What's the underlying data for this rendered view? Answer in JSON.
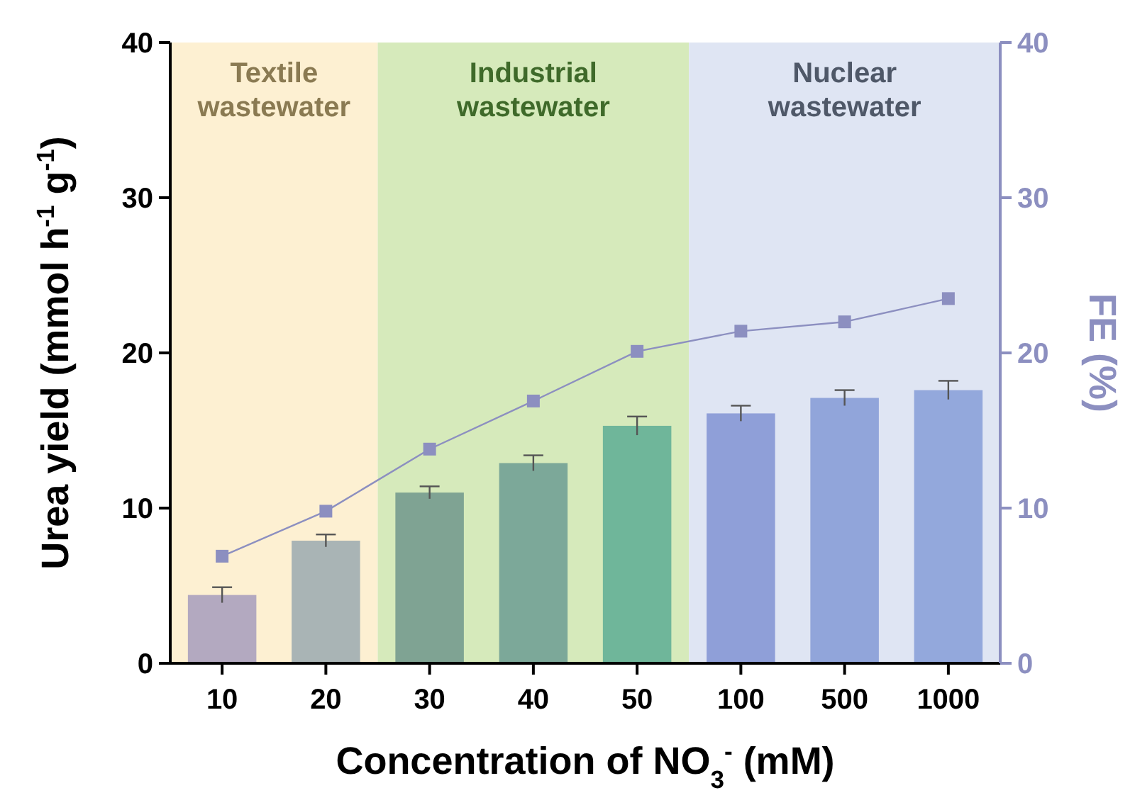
{
  "chart_data": {
    "type": "bar",
    "xlabel": "Concentration of NO$_{3}$$^{-}$ (mM)",
    "ylabel": "Urea yield (mmol h$^{-1}$ g$^{-1}$)",
    "y2label": "FE (%)",
    "categories": [
      "10",
      "20",
      "30",
      "40",
      "50",
      "100",
      "500",
      "1000"
    ],
    "series": [
      {
        "colors": [
          "#b3a9c0",
          "#a9b4b5",
          "#7fa393",
          "#7ca899",
          "#6fb69a",
          "#8f9fd8",
          "#91a5da",
          "#93a8dc"
        ],
        "values": [
          4.4,
          7.9,
          11.0,
          12.9,
          15.3,
          16.1,
          17.1,
          17.6
        ],
        "errors": [
          0.5,
          0.4,
          0.4,
          0.5,
          0.6,
          0.5,
          0.5,
          0.6
        ]
      },
      {
        "type": "line",
        "axis": "y2",
        "color": "#8c8fc0",
        "marker": "square",
        "line_style": "solid",
        "values": [
          6.9,
          9.8,
          13.8,
          16.9,
          20.1,
          21.4,
          22.0,
          23.5
        ]
      }
    ],
    "ylim": [
      0,
      40
    ],
    "yticks": [
      0,
      10,
      20,
      30,
      40
    ],
    "y2lim": [
      0,
      40
    ],
    "y2ticks": [
      0,
      10,
      20,
      30,
      40
    ],
    "bands": [
      {
        "axis": "x",
        "from": "10",
        "to": "20",
        "label": "Textile wastewater",
        "color": "#fdf0d2"
      },
      {
        "axis": "x",
        "from": "30",
        "to": "50",
        "label": "Industrial wastewater",
        "color": "#d6eabb"
      },
      {
        "axis": "x",
        "from": "100",
        "to": "1000",
        "label": "Nuclear wastewater",
        "color": "#dfe5f3"
      }
    ],
    "grid": false,
    "legend": false
  }
}
